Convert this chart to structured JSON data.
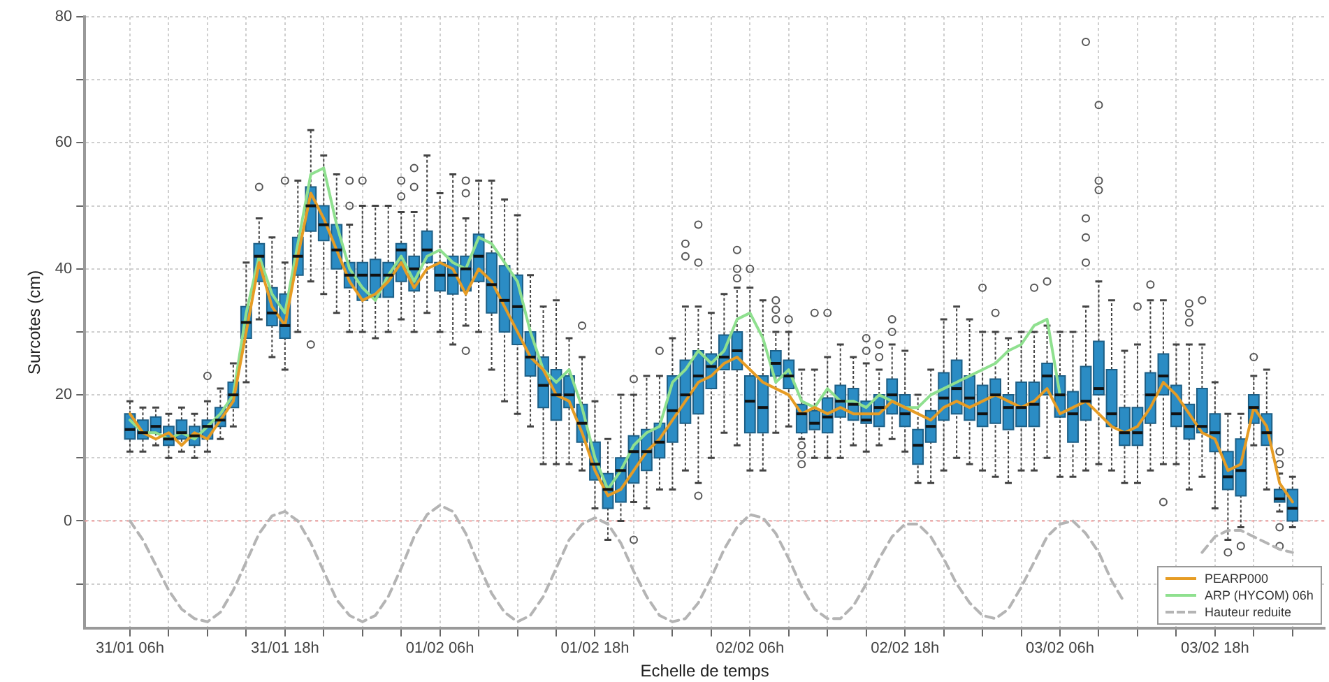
{
  "chart_data": {
    "type": "box",
    "xlabel": "Echelle de temps",
    "ylabel": "Surcotes (cm)",
    "categories": [
      "31/01 06h",
      null,
      null,
      null,
      null,
      null,
      null,
      null,
      null,
      null,
      null,
      null,
      "31/01 18h",
      null,
      null,
      null,
      null,
      null,
      null,
      null,
      null,
      null,
      null,
      null,
      "01/02 06h",
      null,
      null,
      null,
      null,
      null,
      null,
      null,
      null,
      null,
      null,
      null,
      "01/02 18h",
      null,
      null,
      null,
      null,
      null,
      null,
      null,
      null,
      null,
      null,
      null,
      "02/02 06h",
      null,
      null,
      null,
      null,
      null,
      null,
      null,
      null,
      null,
      null,
      null,
      "02/02 18h",
      null,
      null,
      null,
      null,
      null,
      null,
      null,
      null,
      null,
      null,
      null,
      "03/02 06h",
      null,
      null,
      null,
      null,
      null,
      null,
      null,
      null,
      null,
      null,
      null,
      "03/02 18h",
      null,
      null,
      null,
      null,
      null,
      null
    ],
    "ylim": [
      -17,
      80
    ],
    "yticks": [
      {
        "value": -10,
        "label": null
      },
      0,
      {
        "value": 10,
        "label": null
      },
      20,
      {
        "value": 30,
        "label": null
      },
      40,
      {
        "value": 50,
        "label": null
      },
      60,
      {
        "value": 70,
        "label": null
      },
      80
    ],
    "grid": true,
    "legend": "bottom right",
    "ref_lines": [
      {
        "axis": "y",
        "value": 0,
        "color": "#f4a0a0",
        "line_style": "dotted"
      }
    ],
    "series": [
      {
        "type": "box",
        "color": "#2b8cc4",
        "boxes": [
          {
            "low": 11,
            "q1": 13,
            "median": 14.5,
            "q3": 17,
            "high": 19
          },
          {
            "low": 11,
            "q1": 13,
            "median": 14,
            "q3": 16,
            "high": 18
          },
          {
            "low": 12,
            "q1": 14,
            "median": 15,
            "q3": 16.5,
            "high": 18
          },
          {
            "low": 10,
            "q1": 12,
            "median": 13,
            "q3": 15,
            "high": 17
          },
          {
            "low": 11,
            "q1": 13,
            "median": 14,
            "q3": 16,
            "high": 18
          },
          {
            "low": 10,
            "q1": 12,
            "median": 13.5,
            "q3": 15,
            "high": 17
          },
          {
            "low": 11,
            "q1": 13,
            "median": 15,
            "q3": 16,
            "high": 19,
            "outliers": [
              23
            ]
          },
          {
            "low": 13,
            "q1": 15,
            "median": 16,
            "q3": 18,
            "high": 21
          },
          {
            "low": 15,
            "q1": 18,
            "median": 20,
            "q3": 22,
            "high": 25
          },
          {
            "low": 22,
            "q1": 29,
            "median": 31.5,
            "q3": 34,
            "high": 41
          },
          {
            "low": 32,
            "q1": 38,
            "median": 42,
            "q3": 44,
            "high": 48,
            "outliers": [
              53
            ]
          },
          {
            "low": 26,
            "q1": 31,
            "median": 33,
            "q3": 37,
            "high": 45
          },
          {
            "low": 24,
            "q1": 29,
            "median": 31,
            "q3": 36,
            "high": 41,
            "outliers": [
              54
            ]
          },
          {
            "low": 30,
            "q1": 39,
            "median": 42,
            "q3": 45,
            "high": 54
          },
          {
            "low": 38,
            "q1": 46,
            "median": 50,
            "q3": 53,
            "high": 62,
            "outliers": [
              28
            ]
          },
          {
            "low": 36,
            "q1": 44.5,
            "median": 47,
            "q3": 50,
            "high": 58
          },
          {
            "low": 33,
            "q1": 40,
            "median": 43,
            "q3": 47,
            "high": 55
          },
          {
            "low": 30,
            "q1": 37,
            "median": 39,
            "q3": 41,
            "high": 47,
            "outliers": [
              54,
              50
            ]
          },
          {
            "low": 30,
            "q1": 35,
            "median": 39,
            "q3": 41,
            "high": 50,
            "outliers": [
              54
            ]
          },
          {
            "low": 29,
            "q1": 35.5,
            "median": 39,
            "q3": 41.5,
            "high": 50
          },
          {
            "low": 30,
            "q1": 35.5,
            "median": 39,
            "q3": 41,
            "high": 50
          },
          {
            "low": 32,
            "q1": 38,
            "median": 43,
            "q3": 44,
            "high": 49,
            "outliers": [
              54,
              51.5
            ]
          },
          {
            "low": 30,
            "q1": 36.5,
            "median": 40,
            "q3": 42,
            "high": 49,
            "outliers": [
              56,
              53
            ]
          },
          {
            "low": 33,
            "q1": 41,
            "median": 43,
            "q3": 46,
            "high": 58
          },
          {
            "low": 30,
            "q1": 36.5,
            "median": 39,
            "q3": 41,
            "high": 52
          },
          {
            "low": 28,
            "q1": 36,
            "median": 39,
            "q3": 42,
            "high": 55
          },
          {
            "low": 31,
            "q1": 36.5,
            "median": 40,
            "q3": 42,
            "high": 48,
            "outliers": [
              54,
              52,
              27
            ]
          },
          {
            "low": 30,
            "q1": 38,
            "median": 42,
            "q3": 45.5,
            "high": 54
          },
          {
            "low": 24,
            "q1": 33,
            "median": 37.5,
            "q3": 42.5,
            "high": 54
          },
          {
            "low": 19,
            "q1": 30,
            "median": 35,
            "q3": 40.5,
            "high": 51
          },
          {
            "low": 17,
            "q1": 28,
            "median": 34,
            "q3": 39,
            "high": 48.5
          },
          {
            "low": 15,
            "q1": 23,
            "median": 26,
            "q3": 30,
            "high": 39
          },
          {
            "low": 9,
            "q1": 18,
            "median": 21.5,
            "q3": 26,
            "high": 34
          },
          {
            "low": 9,
            "q1": 16,
            "median": 20,
            "q3": 24,
            "high": 35
          },
          {
            "low": 9,
            "q1": 18,
            "median": 20,
            "q3": 23,
            "high": 29
          },
          {
            "low": 8,
            "q1": 12.5,
            "median": 15.5,
            "q3": 18.5,
            "high": 26,
            "outliers": [
              31
            ]
          },
          {
            "low": 2,
            "q1": 6.5,
            "median": 9,
            "q3": 12.5,
            "high": 19
          },
          {
            "low": -3,
            "q1": 2,
            "median": 5,
            "q3": 7.5,
            "high": 13
          },
          {
            "low": 0,
            "q1": 3,
            "median": 8,
            "q3": 10,
            "high": 20
          },
          {
            "low": 3,
            "q1": 6,
            "median": 11,
            "q3": 13.5,
            "high": 20,
            "outliers": [
              22.5,
              -3
            ]
          },
          {
            "low": 2,
            "q1": 8,
            "median": 11,
            "q3": 14.5,
            "high": 23
          },
          {
            "low": 5,
            "q1": 10,
            "median": 12.5,
            "q3": 15.5,
            "high": 23,
            "outliers": [
              27
            ]
          },
          {
            "low": 5,
            "q1": 12.5,
            "median": 17.5,
            "q3": 23,
            "high": 29
          },
          {
            "low": 8,
            "q1": 15.5,
            "median": 20,
            "q3": 25.5,
            "high": 34,
            "outliers": [
              44,
              42
            ]
          },
          {
            "low": 6,
            "q1": 17,
            "median": 23,
            "q3": 27,
            "high": 34,
            "outliers": [
              47,
              41,
              4
            ]
          },
          {
            "low": 10,
            "q1": 21,
            "median": 24.5,
            "q3": 26.5,
            "high": 33
          },
          {
            "low": 14,
            "q1": 24,
            "median": 26,
            "q3": 29.5,
            "high": 36
          },
          {
            "low": 12,
            "q1": 24,
            "median": 27,
            "q3": 30,
            "high": 37,
            "outliers": [
              43,
              40,
              38.5
            ]
          },
          {
            "low": 8,
            "q1": 14,
            "median": 19,
            "q3": 23,
            "high": 37,
            "outliers": [
              40
            ]
          },
          {
            "low": 8,
            "q1": 14,
            "median": 18,
            "q3": 23,
            "high": 35
          },
          {
            "low": 14,
            "q1": 23,
            "median": 25,
            "q3": 27,
            "high": 30,
            "outliers": [
              35,
              33.5,
              32
            ]
          },
          {
            "low": 15,
            "q1": 21,
            "median": 23,
            "q3": 25.5,
            "high": 30,
            "outliers": [
              32
            ]
          },
          {
            "low": 13,
            "q1": 14,
            "median": 17,
            "q3": 18.5,
            "high": 24,
            "outliers": [
              12,
              10.5,
              9
            ]
          },
          {
            "low": 10,
            "q1": 14.5,
            "median": 15.5,
            "q3": 17.5,
            "high": 24,
            "outliers": [
              33
            ]
          },
          {
            "low": 10,
            "q1": 14,
            "median": 16.5,
            "q3": 19.5,
            "high": 26,
            "outliers": [
              33
            ]
          },
          {
            "low": 10,
            "q1": 16.5,
            "median": 19,
            "q3": 21.5,
            "high": 28
          },
          {
            "low": 12,
            "q1": 16,
            "median": 18.5,
            "q3": 21,
            "high": 26
          },
          {
            "low": 11,
            "q1": 15.5,
            "median": 16,
            "q3": 19,
            "high": 25,
            "outliers": [
              29,
              27
            ]
          },
          {
            "low": 12,
            "q1": 15,
            "median": 18,
            "q3": 20,
            "high": 24,
            "outliers": [
              28,
              26
            ]
          },
          {
            "low": 13,
            "q1": 17,
            "median": 20,
            "q3": 22.5,
            "high": 28,
            "outliers": [
              32,
              30
            ]
          },
          {
            "low": 11,
            "q1": 15,
            "median": 17,
            "q3": 20,
            "high": 27
          },
          {
            "low": 6,
            "q1": 9,
            "median": 12,
            "q3": 14.5,
            "high": 20
          },
          {
            "low": 6,
            "q1": 12.5,
            "median": 15,
            "q3": 17.5,
            "high": 24
          },
          {
            "low": 8,
            "q1": 16,
            "median": 19.5,
            "q3": 23.5,
            "high": 32
          },
          {
            "low": 10,
            "q1": 17,
            "median": 21,
            "q3": 25.5,
            "high": 34
          },
          {
            "low": 9,
            "q1": 16,
            "median": 19.5,
            "q3": 23,
            "high": 32
          },
          {
            "low": 8,
            "q1": 15,
            "median": 17,
            "q3": 21.5,
            "high": 30,
            "outliers": [
              37
            ]
          },
          {
            "low": 7,
            "q1": 15.5,
            "median": 20,
            "q3": 22.5,
            "high": 30,
            "outliers": [
              33
            ]
          },
          {
            "low": 6,
            "q1": 14.5,
            "median": 18,
            "q3": 20,
            "high": 29
          },
          {
            "low": 8,
            "q1": 15,
            "median": 18,
            "q3": 22,
            "high": 30
          },
          {
            "low": 8,
            "q1": 15,
            "median": 18.5,
            "q3": 22,
            "high": 30,
            "outliers": [
              37
            ]
          },
          {
            "low": 10,
            "q1": 20,
            "median": 23,
            "q3": 25,
            "high": 31,
            "outliers": [
              38
            ]
          },
          {
            "low": 7,
            "q1": 16.5,
            "median": 20,
            "q3": 23,
            "high": 30
          },
          {
            "low": 7,
            "q1": 12.5,
            "median": 17,
            "q3": 20.5,
            "high": 30
          },
          {
            "low": 8,
            "q1": 16,
            "median": 19,
            "q3": 24.5,
            "high": 34,
            "outliers": [
              76,
              48,
              45,
              41
            ]
          },
          {
            "low": 9,
            "q1": 20,
            "median": 21,
            "q3": 28.5,
            "high": 38,
            "outliers": [
              66,
              54,
              52.5
            ]
          },
          {
            "low": 8,
            "q1": 15,
            "median": 17,
            "q3": 24,
            "high": 35
          },
          {
            "low": 6,
            "q1": 12,
            "median": 14,
            "q3": 18,
            "high": 27
          },
          {
            "low": 6,
            "q1": 12,
            "median": 14,
            "q3": 18,
            "high": 28,
            "outliers": [
              34
            ]
          },
          {
            "low": 8,
            "q1": 15.5,
            "median": 20,
            "q3": 23.5,
            "high": 35,
            "outliers": [
              37.5
            ]
          },
          {
            "low": 9,
            "q1": 20,
            "median": 23,
            "q3": 26.5,
            "high": 35,
            "outliers": [
              3
            ]
          },
          {
            "low": 9,
            "q1": 15,
            "median": 17,
            "q3": 21.5,
            "high": 28
          },
          {
            "low": 5,
            "q1": 13,
            "median": 15,
            "q3": 18.5,
            "high": 28,
            "outliers": [
              34.5,
              33,
              31.5
            ]
          },
          {
            "low": 7,
            "q1": 14,
            "median": 15,
            "q3": 21,
            "high": 28,
            "outliers": [
              35
            ]
          },
          {
            "low": 2,
            "q1": 11,
            "median": 14,
            "q3": 17,
            "high": 22
          },
          {
            "low": -3,
            "q1": 5,
            "median": 7,
            "q3": 11,
            "high": 17,
            "outliers": [
              -5
            ]
          },
          {
            "low": -1,
            "q1": 4,
            "median": 8,
            "q3": 13,
            "high": 17,
            "outliers": [
              -4
            ]
          },
          {
            "low": 12,
            "q1": 15.5,
            "median": 18,
            "q3": 20,
            "high": 23,
            "outliers": [
              26
            ]
          },
          {
            "low": 5,
            "q1": 12,
            "median": 14,
            "q3": 17,
            "high": 24
          },
          {
            "low": 1.5,
            "q1": 3,
            "median": 3.5,
            "q3": 5,
            "high": 7.5,
            "outliers": [
              11,
              9,
              -1,
              -4
            ]
          },
          {
            "low": -1,
            "q1": 0,
            "median": 2,
            "q3": 5,
            "high": 7
          }
        ]
      },
      {
        "type": "line",
        "name": "PEARP000",
        "color": "#e69c24",
        "values": [
          17,
          14,
          13,
          14,
          12,
          14,
          13,
          16,
          19,
          30,
          41,
          34,
          31,
          42,
          52,
          48,
          43,
          38,
          35,
          36,
          38,
          41,
          37,
          40,
          41,
          40,
          36,
          40,
          38,
          34,
          30,
          26,
          24,
          20,
          19,
          14,
          8,
          4,
          5,
          8,
          11,
          13,
          16,
          19,
          22,
          23,
          25,
          26,
          24,
          22,
          21,
          20,
          17,
          18,
          17,
          18,
          17,
          17,
          17,
          19,
          18,
          17,
          16,
          18,
          19,
          18,
          19,
          20,
          19,
          18,
          19,
          21,
          17,
          18,
          19,
          17,
          15,
          14,
          15,
          18,
          22,
          20,
          17,
          14,
          13,
          8,
          9,
          18,
          15,
          6,
          3
        ]
      },
      {
        "type": "line",
        "name": "ARP (HYCOM) 06h",
        "color": "#8fe08f",
        "values": [
          16,
          14,
          14,
          13,
          14,
          13,
          15,
          17,
          20,
          33,
          42,
          36,
          33,
          44,
          55,
          56,
          47,
          40,
          37,
          35,
          39,
          42,
          38,
          42,
          43,
          41,
          40,
          45,
          44,
          41,
          38,
          30,
          24,
          22,
          24,
          18,
          10,
          5,
          8,
          12,
          14,
          15,
          22,
          24,
          27,
          25,
          27,
          32,
          33,
          29,
          22,
          24,
          19,
          18,
          21,
          19,
          19,
          18,
          20,
          19,
          18,
          18,
          20,
          21,
          22,
          23,
          24,
          25,
          27,
          28,
          31,
          32,
          20,
          null,
          null,
          null,
          null,
          null,
          null,
          null,
          null,
          null,
          null,
          null,
          null,
          null,
          null,
          null,
          null,
          null,
          null
        ]
      },
      {
        "type": "line",
        "name": "Hauteur reduite",
        "color": "#b4b4b4",
        "line_style": "dashed",
        "values": [
          0,
          -3,
          -7,
          -11,
          -14,
          -15.5,
          -16,
          -14.5,
          -11,
          -6.5,
          -2,
          0.8,
          1.5,
          0,
          -3.5,
          -8,
          -12.5,
          -15,
          -16,
          -15,
          -12,
          -7.5,
          -2.5,
          1,
          2.5,
          1.5,
          -2,
          -7,
          -11.5,
          -14.5,
          -16,
          -15,
          -12,
          -7.5,
          -3,
          -0.5,
          0.5,
          -0.5,
          -3.5,
          -8,
          -12,
          -15,
          -16,
          -15.5,
          -13,
          -9,
          -4.5,
          -1,
          1,
          0.5,
          -2,
          -6,
          -10.5,
          -14,
          -15.5,
          -15.5,
          -13.5,
          -10,
          -6,
          -2.5,
          -0.5,
          -0.5,
          -2.5,
          -6,
          -10,
          -13,
          -15,
          -15.5,
          -14,
          -10.5,
          -6.5,
          -2.5,
          -0.5,
          0,
          -2,
          -5,
          -9.5,
          -13,
          null,
          null,
          null,
          null,
          null,
          -5,
          -2.5,
          -1.5,
          -1.5,
          -2.5,
          -3.5,
          -4.5,
          -5
        ]
      }
    ]
  }
}
